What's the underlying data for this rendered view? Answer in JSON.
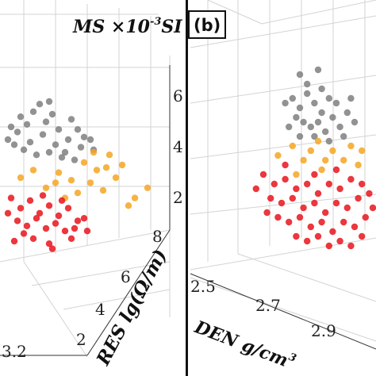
{
  "chart_data": [
    {
      "type": "scatter",
      "panel": "a",
      "zlabel_main": "MS ×10",
      "zlabel_exp": "-3",
      "zlabel_unit": "SI",
      "ylabel": "RES lg(Ω/m)",
      "x_tick_visible": "3.2",
      "y_ticks": [
        "2",
        "4",
        "6",
        "8"
      ],
      "z_ticks": [
        "2",
        "4",
        "6"
      ],
      "zlim": [
        1,
        7
      ],
      "ylim": [
        1,
        8
      ],
      "grid": true,
      "series": [
        {
          "color": "#7f7f7f",
          "points": [
            [
              0.12,
              5.4
            ],
            [
              0.2,
              5.6
            ],
            [
              0.28,
              5.2
            ],
            [
              0.36,
              4.9
            ],
            [
              0.44,
              5.3
            ],
            [
              0.52,
              4.6
            ],
            [
              0.1,
              4.8
            ],
            [
              0.18,
              4.4
            ],
            [
              0.26,
              4.7
            ],
            [
              0.34,
              4.3
            ],
            [
              0.42,
              4.5
            ],
            [
              0.5,
              4.2
            ],
            [
              0.58,
              4.1
            ],
            [
              0.14,
              4.1
            ],
            [
              0.22,
              3.9
            ],
            [
              0.3,
              4.0
            ],
            [
              0.38,
              3.8
            ],
            [
              0.46,
              3.7
            ],
            [
              0.06,
              5.0
            ],
            [
              0.24,
              5.9
            ],
            [
              0.32,
              5.5
            ],
            [
              0.4,
              4.0
            ],
            [
              0.08,
              4.3
            ],
            [
              0.16,
              5.1
            ],
            [
              0.48,
              4.9
            ],
            [
              0.3,
              6.0
            ],
            [
              0.56,
              4.5
            ],
            [
              0.04,
              4.5
            ]
          ]
        },
        {
          "color": "#f5a623",
          "points": [
            [
              0.2,
              3.3
            ],
            [
              0.36,
              3.2
            ],
            [
              0.52,
              3.6
            ],
            [
              0.6,
              3.3
            ],
            [
              0.68,
              3.9
            ],
            [
              0.76,
              3.5
            ],
            [
              0.44,
              2.9
            ],
            [
              0.28,
              2.6
            ],
            [
              0.56,
              2.8
            ],
            [
              0.64,
              2.5
            ],
            [
              0.72,
              3.0
            ],
            [
              0.84,
              2.2
            ],
            [
              0.92,
              2.6
            ],
            [
              0.48,
              2.4
            ],
            [
              0.4,
              2.2
            ],
            [
              0.12,
              3.0
            ],
            [
              0.8,
              1.9
            ],
            [
              0.66,
              3.4
            ],
            [
              0.58,
              4.0
            ],
            [
              0.34,
              2.8
            ]
          ]
        },
        {
          "color": "#e8141b",
          "points": [
            [
              0.06,
              2.2
            ],
            [
              0.12,
              1.8
            ],
            [
              0.18,
              2.1
            ],
            [
              0.24,
              1.6
            ],
            [
              0.3,
              1.9
            ],
            [
              0.36,
              1.5
            ],
            [
              0.42,
              1.8
            ],
            [
              0.48,
              1.3
            ],
            [
              0.1,
              1.3
            ],
            [
              0.16,
              1.1
            ],
            [
              0.22,
              1.4
            ],
            [
              0.28,
              1.0
            ],
            [
              0.34,
              1.2
            ],
            [
              0.4,
              0.9
            ],
            [
              0.46,
              1.0
            ],
            [
              0.52,
              1.4
            ],
            [
              0.04,
              1.6
            ],
            [
              0.2,
              0.6
            ],
            [
              0.3,
              0.4
            ],
            [
              0.14,
              0.8
            ],
            [
              0.26,
              2.3
            ],
            [
              0.38,
              2.1
            ],
            [
              0.08,
              0.5
            ],
            [
              0.44,
              0.6
            ],
            [
              0.54,
              0.9
            ],
            [
              0.32,
              0.2
            ]
          ]
        }
      ]
    },
    {
      "type": "scatter",
      "panel": "b",
      "label": "(b)",
      "xlabel_main": "DEN g/cm",
      "xlabel_exp": "3",
      "x_ticks": [
        "2.5",
        "2.7",
        "2.9"
      ],
      "grid": true,
      "series": [
        {
          "color": "#7f7f7f",
          "points": [
            [
              0.52,
              0.7
            ],
            [
              0.56,
              0.72
            ],
            [
              0.6,
              0.68
            ],
            [
              0.64,
              0.74
            ],
            [
              0.68,
              0.7
            ],
            [
              0.72,
              0.66
            ],
            [
              0.76,
              0.72
            ],
            [
              0.58,
              0.64
            ],
            [
              0.62,
              0.62
            ],
            [
              0.66,
              0.6
            ],
            [
              0.7,
              0.62
            ],
            [
              0.74,
              0.58
            ],
            [
              0.78,
              0.64
            ],
            [
              0.82,
              0.6
            ],
            [
              0.86,
              0.66
            ],
            [
              0.54,
              0.6
            ],
            [
              0.6,
              0.56
            ],
            [
              0.68,
              0.56
            ],
            [
              0.76,
              0.54
            ],
            [
              0.84,
              0.56
            ],
            [
              0.9,
              0.62
            ],
            [
              0.8,
              0.7
            ],
            [
              0.72,
              0.76
            ],
            [
              0.64,
              0.78
            ],
            [
              0.7,
              0.84
            ],
            [
              0.6,
              0.82
            ],
            [
              0.88,
              0.72
            ]
          ]
        },
        {
          "color": "#f5a623",
          "points": [
            [
              0.56,
              0.52
            ],
            [
              0.66,
              0.5
            ],
            [
              0.78,
              0.5
            ],
            [
              0.88,
              0.52
            ],
            [
              0.62,
              0.46
            ],
            [
              0.74,
              0.46
            ],
            [
              0.84,
              0.46
            ],
            [
              0.94,
              0.5
            ],
            [
              0.7,
              0.54
            ],
            [
              0.92,
              0.44
            ],
            [
              0.58,
              0.4
            ],
            [
              0.72,
              0.42
            ],
            [
              0.48,
              0.48
            ]
          ]
        },
        {
          "color": "#e8141b",
          "points": [
            [
              0.4,
              0.4
            ],
            [
              0.46,
              0.36
            ],
            [
              0.52,
              0.38
            ],
            [
              0.58,
              0.34
            ],
            [
              0.64,
              0.36
            ],
            [
              0.7,
              0.32
            ],
            [
              0.76,
              0.36
            ],
            [
              0.82,
              0.34
            ],
            [
              0.88,
              0.38
            ],
            [
              0.94,
              0.36
            ],
            [
              0.44,
              0.3
            ],
            [
              0.5,
              0.28
            ],
            [
              0.56,
              0.3
            ],
            [
              0.62,
              0.26
            ],
            [
              0.68,
              0.28
            ],
            [
              0.74,
              0.24
            ],
            [
              0.8,
              0.28
            ],
            [
              0.86,
              0.26
            ],
            [
              0.92,
              0.3
            ],
            [
              0.98,
              0.32
            ],
            [
              0.48,
              0.22
            ],
            [
              0.54,
              0.2
            ],
            [
              0.6,
              0.22
            ],
            [
              0.66,
              0.18
            ],
            [
              0.72,
              0.2
            ],
            [
              0.78,
              0.16
            ],
            [
              0.84,
              0.2
            ],
            [
              0.9,
              0.18
            ],
            [
              0.96,
              0.22
            ],
            [
              0.58,
              0.14
            ],
            [
              0.64,
              0.12
            ],
            [
              0.7,
              0.14
            ],
            [
              0.76,
              0.1
            ],
            [
              0.82,
              0.12
            ],
            [
              0.88,
              0.1
            ],
            [
              0.94,
              0.14
            ],
            [
              0.36,
              0.34
            ],
            [
              0.42,
              0.24
            ],
            [
              1.0,
              0.26
            ],
            [
              0.68,
              0.4
            ],
            [
              0.8,
              0.42
            ],
            [
              0.52,
              0.44
            ]
          ]
        }
      ]
    }
  ]
}
